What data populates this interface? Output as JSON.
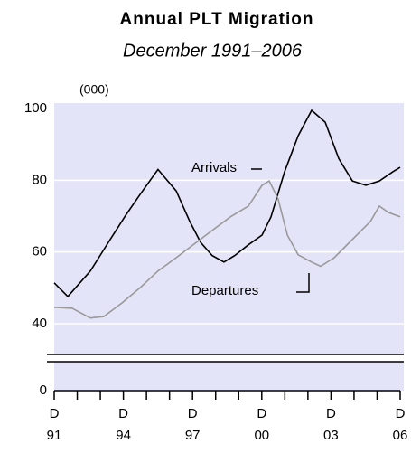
{
  "chart_data": {
    "type": "line",
    "title": "Annual PLT Migration",
    "subtitle": "December 1991–2006",
    "y_unit_label": "(000)",
    "xlim": [
      1991.92,
      2006.92
    ],
    "xticks": [
      {
        "value": 1991.92,
        "label": "D\n91"
      },
      {
        "value": 1992.92,
        "label": null
      },
      {
        "value": 1993.92,
        "label": null
      },
      {
        "value": 1994.92,
        "label": "D\n94"
      },
      {
        "value": 1995.92,
        "label": null
      },
      {
        "value": 1996.92,
        "label": null
      },
      {
        "value": 1997.92,
        "label": "D\n97"
      },
      {
        "value": 1998.92,
        "label": null
      },
      {
        "value": 1999.92,
        "label": null
      },
      {
        "value": 2000.92,
        "label": "D\n00"
      },
      {
        "value": 2001.92,
        "label": null
      },
      {
        "value": 2002.92,
        "label": null
      },
      {
        "value": 2003.92,
        "label": "D\n03"
      },
      {
        "value": 2004.92,
        "label": null
      },
      {
        "value": 2005.92,
        "label": null
      },
      {
        "value": 2006.92,
        "label": "D\n06"
      }
    ],
    "ylim": [
      0,
      100
    ],
    "yticks": [
      0,
      40,
      60,
      80,
      100
    ],
    "axis_break": true,
    "grid": true,
    "background": "#e4e4f8",
    "series": [
      {
        "name": "Arrivals",
        "color": "#000000",
        "x": [
          1991.92,
          1992.51,
          1993.49,
          1994.27,
          1995.05,
          1995.64,
          1996.42,
          1997.21,
          1997.8,
          1998.27,
          1998.77,
          1999.28,
          1999.75,
          2000.34,
          2000.93,
          2001.32,
          2001.91,
          2002.5,
          2003.08,
          2003.67,
          2004.26,
          2004.85,
          2005.43,
          2006.02,
          2006.61,
          2006.92
        ],
        "values": [
          51.4,
          47.6,
          54.7,
          62.7,
          70.5,
          76,
          83,
          77,
          68.5,
          62.7,
          59,
          57.2,
          59,
          62,
          64.7,
          69.8,
          82.4,
          92.4,
          99.5,
          96.2,
          86,
          79.8,
          78.6,
          79.8,
          82.4,
          83.6
        ]
      },
      {
        "name": "Departures",
        "color": "#999999",
        "x": [
          1991.92,
          1992.7,
          1993.49,
          1994.07,
          1994.86,
          1995.64,
          1996.42,
          1997.21,
          1997.99,
          1998.77,
          1999.56,
          2000.34,
          2000.93,
          2001.24,
          2001.63,
          2002.03,
          2002.5,
          2003.08,
          2003.47,
          2004.06,
          2004.85,
          2005.63,
          2006.02,
          2006.41,
          2006.92
        ],
        "values": [
          44.6,
          44.3,
          41.6,
          42,
          45.8,
          50,
          54.7,
          58.4,
          62.2,
          66,
          69.8,
          72.8,
          78.6,
          79.8,
          74.8,
          64.7,
          59.2,
          57.2,
          56,
          58.4,
          63.5,
          68.5,
          72.8,
          71,
          69.8
        ]
      }
    ]
  }
}
